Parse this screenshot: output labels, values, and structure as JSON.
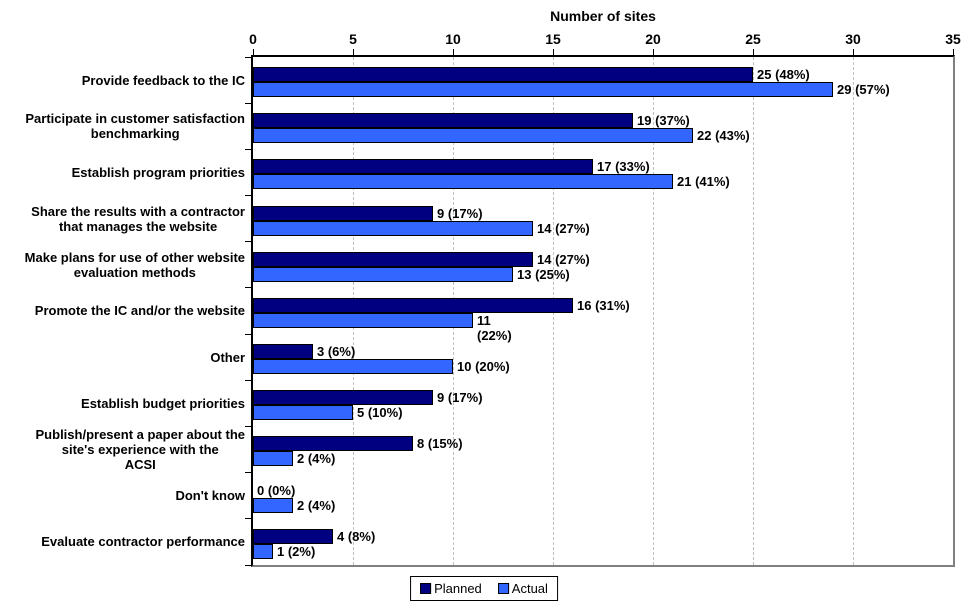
{
  "chart_data": {
    "type": "bar",
    "orientation": "horizontal",
    "title": "Number of sites",
    "xlabel": "Number of sites",
    "ylabel": "",
    "axis": {
      "min": 0,
      "max": 35,
      "tick_step": 5,
      "ticks": [
        0,
        5,
        10,
        15,
        20,
        25,
        30,
        35
      ]
    },
    "grid": {
      "on": true,
      "style": "dashed",
      "color": "#C0C0C0",
      "lines_at": [
        5,
        10,
        15,
        20,
        25,
        30
      ]
    },
    "legend": {
      "position": "bottom"
    },
    "categories": [
      "Provide feedback to the IC",
      "Participate in customer satisfaction\nbenchmarking",
      "Establish program priorities",
      "Share the results with a contractor\nthat manages the website",
      "Make plans for use of other website\nevaluation methods",
      "Promote the IC and/or the website",
      "Other",
      "Establish budget priorities",
      "Publish/present a paper about the\nsite's experience with the\nACSI",
      "Don't know",
      "Evaluate contractor performance"
    ],
    "series": [
      {
        "name": "Planned",
        "color": "#000080",
        "values": [
          25,
          19,
          17,
          9,
          14,
          16,
          3,
          9,
          8,
          0,
          4
        ],
        "labels": [
          "25 (48%)",
          "19 (37%)",
          "17 (33%)",
          "9 (17%)",
          "14 (27%)",
          "16 (31%)",
          "3 (6%)",
          "9 (17%)",
          "8 (15%)",
          "0 (0%)",
          "4 (8%)"
        ]
      },
      {
        "name": "Actual",
        "color": "#3366FF",
        "values": [
          29,
          22,
          21,
          14,
          13,
          11,
          10,
          5,
          2,
          2,
          1
        ],
        "labels": [
          "29 (57%)",
          "22 (43%)",
          "21 (41%)",
          "14 (27%)",
          "13 (25%)",
          "11\n(22%)",
          "10 (20%)",
          "5 (10%)",
          "2 (4%)",
          "2 (4%)",
          "1 (2%)"
        ]
      }
    ]
  },
  "colors": {
    "background": "#FFFFFF",
    "text": "#000000",
    "axis_line": "#000000",
    "plot_border": "#808080",
    "gridline": "#C0C0C0",
    "planned": "#000080",
    "actual": "#3366FF"
  }
}
